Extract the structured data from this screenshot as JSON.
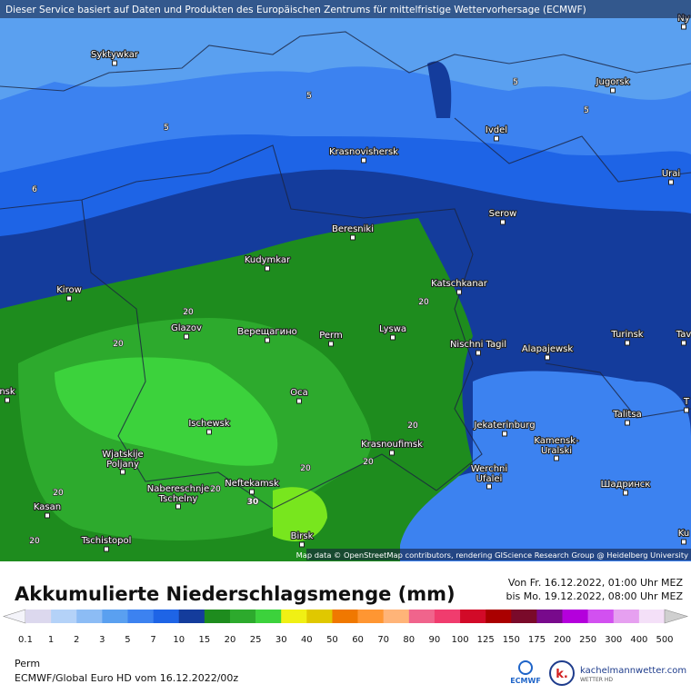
{
  "header": {
    "notice": "Dieser Service basiert auf Daten und Produkten des Europäischen Zentrums für mittelfristige Wettervorhersage (ECMWF)"
  },
  "map": {
    "cities": [
      {
        "label": "Syktywkar"
      },
      {
        "label": "Jugorsk"
      },
      {
        "label": "Ivdel"
      },
      {
        "label": "Krasnovishersk"
      },
      {
        "label": "Urai"
      },
      {
        "label": "Serow"
      },
      {
        "label": "Beresniki"
      },
      {
        "label": "Kudymkar"
      },
      {
        "label": "Katschkanar"
      },
      {
        "label": "Kirow"
      },
      {
        "label": "Glazov"
      },
      {
        "label": "Верещагино"
      },
      {
        "label": "Perm"
      },
      {
        "label": "Lyswa"
      },
      {
        "label": "Turinsk"
      },
      {
        "label": "Nischni Tagil"
      },
      {
        "label": "Alapajewsk"
      },
      {
        "label": "Oca"
      },
      {
        "label": "Talitsa"
      },
      {
        "label": "Ischewsk"
      },
      {
        "label": "Jekaterinburg"
      },
      {
        "label": "Krasnoufimsk"
      },
      {
        "label": [
          "Kamensk-",
          "Uralski"
        ]
      },
      {
        "label": [
          "Wjatskije",
          "Poljany"
        ]
      },
      {
        "label": "Neftekamsk"
      },
      {
        "label": [
          "Werchni",
          "Ufalei"
        ]
      },
      {
        "label": "Шадринск"
      },
      {
        "label": [
          "Nabereschnje",
          "Tschelny"
        ]
      },
      {
        "label": "Kasan"
      },
      {
        "label": "Tschistopol"
      },
      {
        "label": "Birsk"
      },
      {
        "label": "Ny"
      },
      {
        "label": "Tav"
      },
      {
        "label": "T"
      },
      {
        "label": "Ku"
      },
      {
        "label": "nsk"
      }
    ],
    "contours": [
      "5",
      "5",
      "5",
      "5",
      "6",
      "20",
      "20",
      "20",
      "20",
      "20",
      "20",
      "20",
      "20",
      "20",
      "30"
    ],
    "attribution": "Map data © OpenStreetMap contributors, rendering GIScience Research Group @ Heidelberg University"
  },
  "title": "Akkumulierte Niederschlagsmenge (mm)",
  "period": [
    "Von Fr. 16.12.2022, 01:00 Uhr MEZ",
    "bis Mo. 19.12.2022, 08:00 Uhr MEZ"
  ],
  "legend": {
    "labels": [
      "0.1",
      "1",
      "2",
      "3",
      "5",
      "7",
      "10",
      "15",
      "20",
      "25",
      "30",
      "40",
      "50",
      "60",
      "70",
      "80",
      "90",
      "100",
      "125",
      "150",
      "175",
      "200",
      "250",
      "300",
      "400",
      "500"
    ],
    "colors": [
      "#dcd8ee",
      "#b4d2f8",
      "#8cbcf5",
      "#5aa0f0",
      "#3c82f0",
      "#1e64e6",
      "#143c9c",
      "#1e8c1e",
      "#2daa2d",
      "#3cd23c",
      "#f0f014",
      "#e0c800",
      "#f07800",
      "#ff9632",
      "#ffb478",
      "#f0648c",
      "#f03c6e",
      "#d20a28",
      "#aa0000",
      "#7a0a2a",
      "#780a8c",
      "#b400dc",
      "#d250f0",
      "#e6a0f0",
      "#f4e0f8"
    ]
  },
  "footer": {
    "location": "Perm",
    "model": "ECMWF/Global Euro HD vom  16.12.2022/00z",
    "ecmwf": "ECMWF",
    "site": "kachelmannwetter.com",
    "site_sub": "WETTER HD"
  }
}
